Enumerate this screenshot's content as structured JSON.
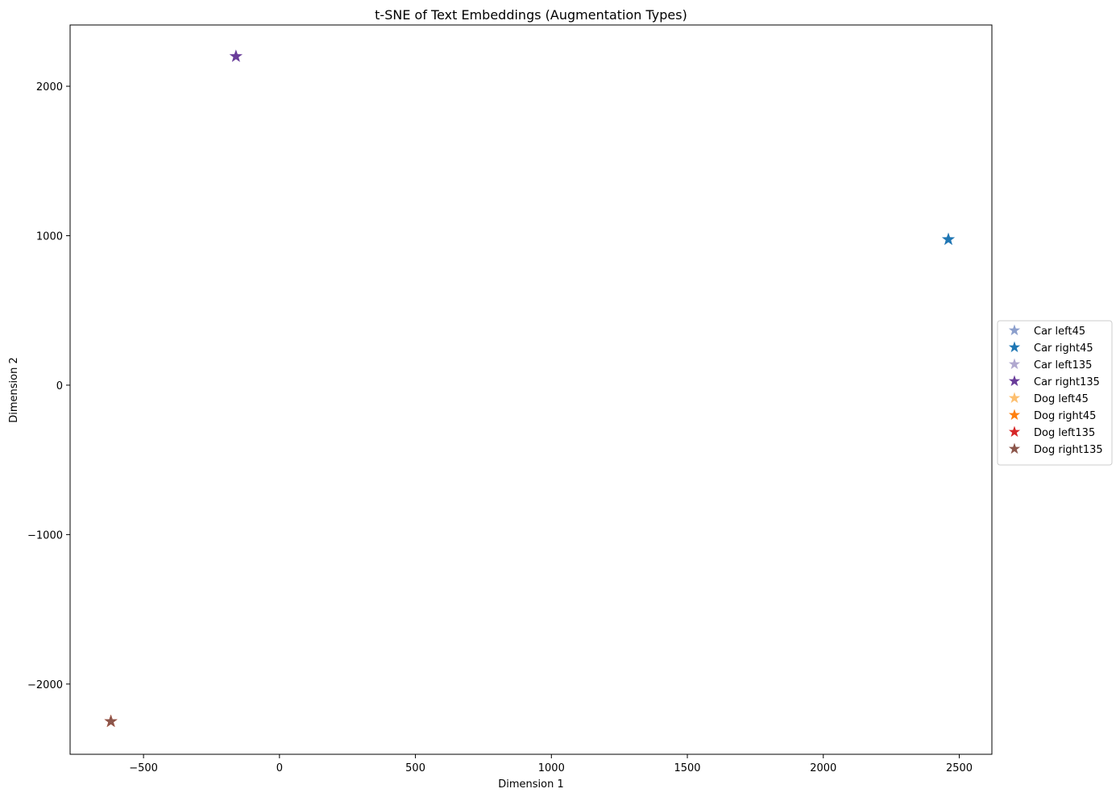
{
  "chart_data": {
    "type": "scatter",
    "title": "t-SNE of Text Embeddings (Augmentation Types)",
    "xlabel": "Dimension 1",
    "ylabel": "Dimension 2",
    "xlim": [
      -770,
      2620
    ],
    "ylim": [
      -2470,
      2410
    ],
    "xticks": [
      -500,
      0,
      500,
      1000,
      1500,
      2000,
      2500
    ],
    "yticks": [
      -2000,
      -1000,
      0,
      1000,
      2000
    ],
    "grid": false,
    "marker": "star",
    "legend_position": "outside-right",
    "series": [
      {
        "name": "Car left45",
        "color": "#8c9fcc",
        "points": [
          [
            2460,
            975
          ]
        ]
      },
      {
        "name": "Car right45",
        "color": "#1f77b4",
        "points": [
          [
            2460,
            975
          ]
        ]
      },
      {
        "name": "Car left135",
        "color": "#b0a8cf",
        "points": [
          [
            -160,
            2200
          ]
        ]
      },
      {
        "name": "Car right135",
        "color": "#6a3d9a",
        "points": [
          [
            -160,
            2200
          ]
        ]
      },
      {
        "name": "Dog left45",
        "color": "#fdbf6f",
        "points": [
          [
            -620,
            -2250
          ]
        ]
      },
      {
        "name": "Dog right45",
        "color": "#ff7f0e",
        "points": [
          [
            -620,
            -2250
          ]
        ]
      },
      {
        "name": "Dog left135",
        "color": "#d62728",
        "points": [
          [
            -620,
            -2250
          ]
        ]
      },
      {
        "name": "Dog right135",
        "color": "#8c564b",
        "points": [
          [
            -620,
            -2250
          ]
        ]
      }
    ]
  }
}
